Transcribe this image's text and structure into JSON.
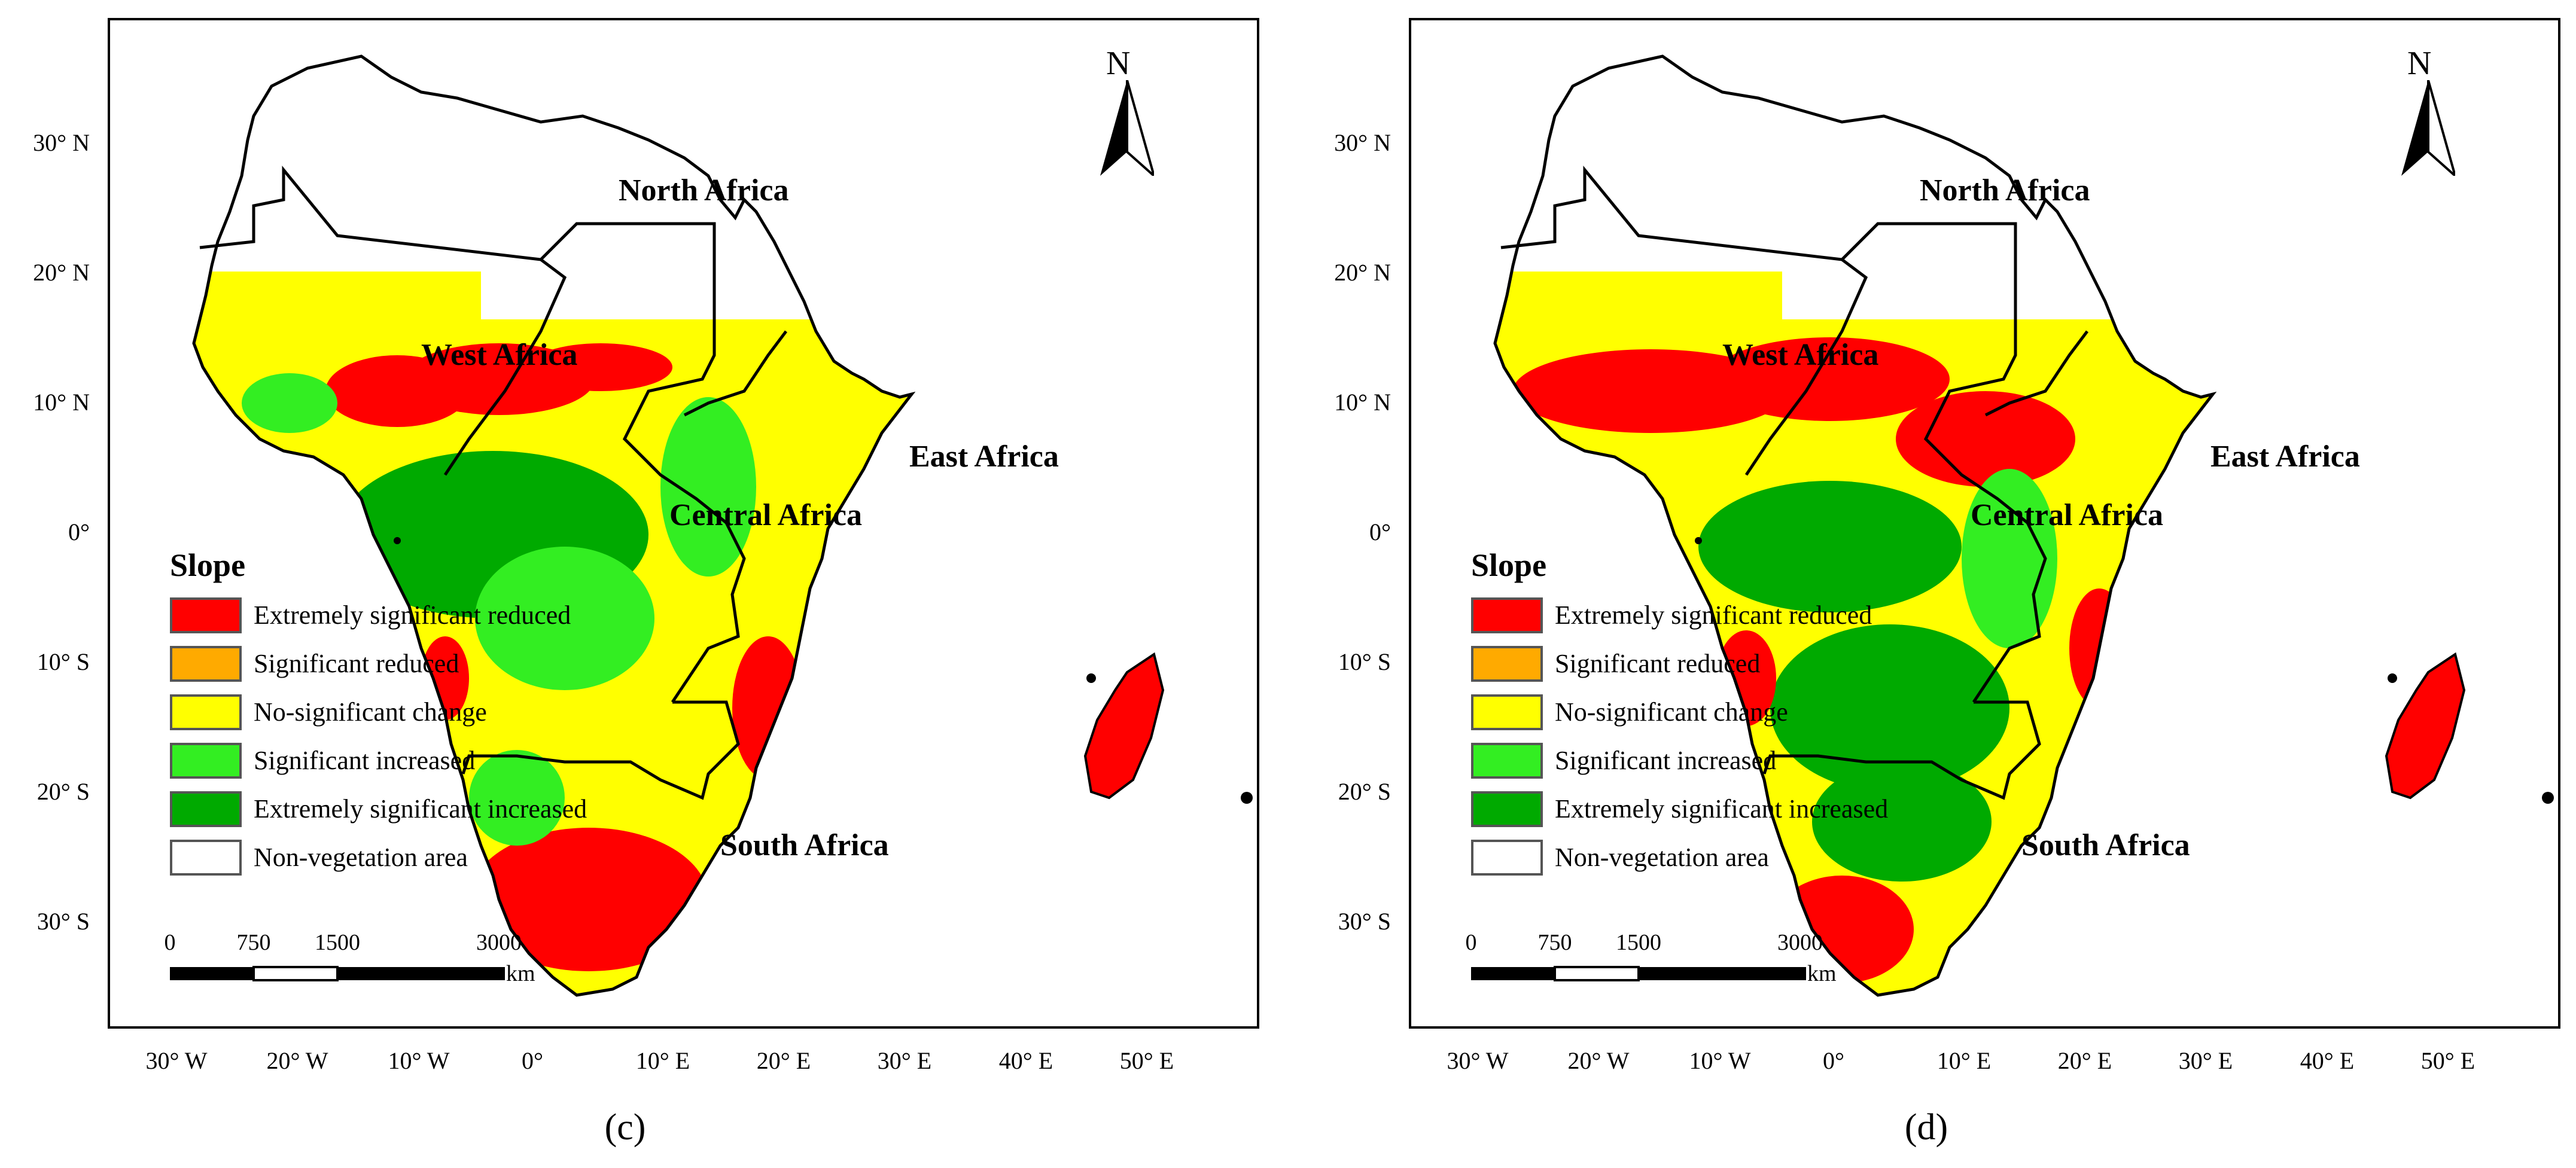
{
  "colors": {
    "extremely_reduced": "#ff0000",
    "significant_reduced": "#ffaa00",
    "no_change": "#ffff00",
    "significant_increased": "#33ee22",
    "extremely_increased": "#00aa00",
    "non_vegetation": "#ffffff"
  },
  "axes": {
    "y_labels": [
      "30° N",
      "20° N",
      "10° N",
      "0°",
      "10° S",
      "20° S",
      "30° S"
    ],
    "x_labels": [
      "30° W",
      "20° W",
      "10° W",
      "0°",
      "10° E",
      "20° E",
      "30° E",
      "40° E",
      "50° E"
    ]
  },
  "legend": {
    "title": "Slope",
    "items": [
      {
        "label": "Extremely significant reduced",
        "color": "#ff0000"
      },
      {
        "label": "Significant reduced",
        "color": "#ffaa00"
      },
      {
        "label": "No-significant change",
        "color": "#ffff00"
      },
      {
        "label": "Significant increased",
        "color": "#33ee22"
      },
      {
        "label": "Extremely significant increased",
        "color": "#00aa00"
      },
      {
        "label": "Non-vegetation area",
        "color": "#ffffff"
      }
    ]
  },
  "scale_bar": {
    "ticks": [
      "0",
      "750",
      "1500",
      "3000"
    ],
    "unit": "km"
  },
  "north_arrow": {
    "label": "N"
  },
  "regions": {
    "north": "North Africa",
    "west": "West Africa",
    "central": "Central Africa",
    "east": "East Africa",
    "south": "South Africa"
  },
  "panels": [
    {
      "label": "(c)"
    },
    {
      "label": "(d)"
    }
  ]
}
